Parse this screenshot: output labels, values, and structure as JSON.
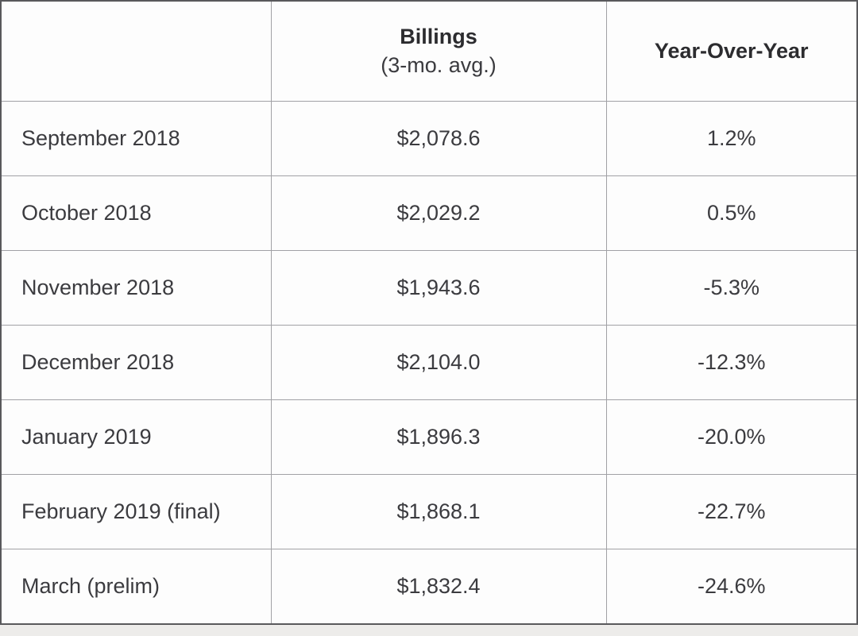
{
  "colors": {
    "page_background": "#edecea",
    "table_background": "#fdfdfd",
    "outer_border": "#59595c",
    "grid_line": "#a1a1a5",
    "header_text": "#2c2c2f",
    "body_text": "#3b3b3f"
  },
  "table": {
    "columns": {
      "period_header": "",
      "billings_label": "Billings",
      "billings_sublabel": "(3-mo. avg.)",
      "yoy_label": "Year-Over-Year"
    },
    "rows": [
      {
        "period": "September 2018",
        "billings": "$2,078.6",
        "yoy": "1.2%"
      },
      {
        "period": "October 2018",
        "billings": "$2,029.2",
        "yoy": "0.5%"
      },
      {
        "period": "November 2018",
        "billings": "$1,943.6",
        "yoy": "-5.3%"
      },
      {
        "period": "December 2018",
        "billings": "$2,104.0",
        "yoy": "-12.3%"
      },
      {
        "period": "January 2019",
        "billings": "$1,896.3",
        "yoy": "-20.0%"
      },
      {
        "period": "February 2019 (final)",
        "billings": "$1,868.1",
        "yoy": "-22.7%"
      },
      {
        "period": "March (prelim)",
        "billings": "$1,832.4",
        "yoy": "-24.6%"
      }
    ]
  },
  "chart_data": {
    "type": "table",
    "title": "",
    "columns": [
      "",
      "Billings (3-mo. avg.)",
      "Year-Over-Year"
    ],
    "categories": [
      "September 2018",
      "October 2018",
      "November 2018",
      "December 2018",
      "January 2019",
      "February 2019 (final)",
      "March (prelim)"
    ],
    "series": [
      {
        "name": "Billings (3-mo. avg.)",
        "values": [
          2078.6,
          2029.2,
          1943.6,
          2104.0,
          1896.3,
          1868.1,
          1832.4
        ]
      },
      {
        "name": "Year-Over-Year %",
        "values": [
          1.2,
          0.5,
          -5.3,
          -12.3,
          -20.0,
          -22.7,
          -24.6
        ]
      }
    ]
  }
}
